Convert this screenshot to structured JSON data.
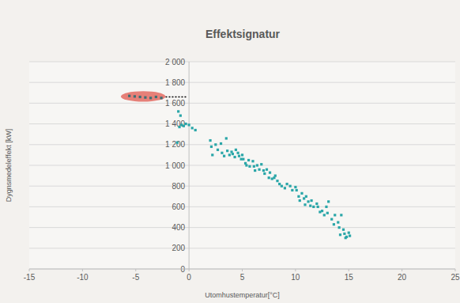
{
  "chart_data": {
    "type": "scatter",
    "title": "Effektsignatur",
    "x_label": "Utomhustemperatur[°C]",
    "y_label": "Dygnsmedeleffekt [kW]",
    "xlim": [
      -15,
      25
    ],
    "xticks": [
      -15,
      -10,
      -5,
      0,
      5,
      10,
      15,
      20,
      25
    ],
    "ylim": [
      0,
      2000
    ],
    "yticks": [
      0,
      200,
      400,
      600,
      800,
      {
        "value": 1000,
        "label": "1 000"
      },
      {
        "value": 1200,
        "label": "1 200"
      },
      {
        "value": 1400,
        "label": "1 400"
      },
      {
        "value": 1600,
        "label": "1 600"
      },
      {
        "value": 1800,
        "label": "1 800"
      },
      {
        "value": 2000,
        "label": "2 000"
      }
    ],
    "grid": true,
    "series": [
      {
        "color": "#2aa6a8",
        "marker": "square",
        "x": [
          -0.9,
          -0.7,
          -0.5,
          -0.3,
          0.0,
          0.3,
          0.6,
          -1.0,
          -0.8,
          -1.1,
          2.0,
          2.1,
          2.2,
          2.5,
          2.7,
          3.0,
          3.1,
          3.3,
          3.5,
          3.6,
          3.8,
          4.0,
          4.1,
          4.3,
          4.4,
          4.6,
          4.7,
          4.9,
          5.0,
          5.1,
          5.3,
          5.4,
          5.6,
          5.7,
          6.0,
          6.1,
          6.2,
          6.4,
          6.6,
          6.8,
          7.0,
          7.1,
          7.3,
          7.5,
          7.6,
          7.8,
          8.0,
          8.1,
          8.3,
          8.5,
          8.7,
          9.0,
          9.2,
          9.5,
          9.7,
          10.0,
          10.1,
          10.3,
          10.4,
          10.6,
          10.8,
          10.9,
          11.0,
          11.2,
          11.4,
          11.5,
          11.7,
          12.0,
          12.1,
          12.3,
          12.5,
          12.7,
          12.9,
          13.0,
          13.1,
          13.4,
          13.6,
          13.7,
          14.0,
          14.1,
          14.2,
          14.3,
          14.5,
          14.6,
          14.7,
          14.8,
          15.0,
          15.1
        ],
        "values": [
          1370,
          1390,
          1380,
          1400,
          1390,
          1360,
          1340,
          1520,
          1480,
          1220,
          1240,
          1180,
          1100,
          1200,
          1150,
          1210,
          1120,
          1090,
          1260,
          1140,
          1100,
          1130,
          1110,
          1080,
          1150,
          1120,
          1090,
          1060,
          1100,
          1060,
          1020,
          1000,
          1050,
          990,
          1040,
          990,
          950,
          1000,
          960,
          1010,
          950,
          920,
          960,
          880,
          930,
          870,
          880,
          900,
          850,
          820,
          800,
          780,
          820,
          800,
          760,
          790,
          760,
          700,
          660,
          730,
          680,
          620,
          700,
          650,
          610,
          660,
          600,
          630,
          600,
          550,
          560,
          520,
          600,
          540,
          650,
          480,
          430,
          520,
          450,
          400,
          330,
          520,
          380,
          340,
          300,
          310,
          350,
          320
        ]
      },
      {
        "color": "#3d6f75",
        "marker": "square",
        "x": [
          -5.6,
          -5.1,
          -4.6,
          -4.1,
          -3.6,
          -3.1,
          -2.6
        ],
        "values": [
          1670,
          1665,
          1660,
          1655,
          1650,
          1660,
          1650
        ]
      }
    ],
    "highlight": {
      "xlim": [
        -6.4,
        -2.2
      ],
      "ylim": [
        1615,
        1715
      ],
      "color": "#e0584f"
    },
    "reference_line": {
      "y": 1660,
      "xlim": [
        -2.2,
        -0.2
      ],
      "color": "#000000",
      "line_style": "dotted"
    }
  }
}
